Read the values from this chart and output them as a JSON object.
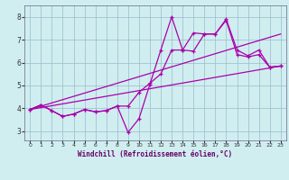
{
  "xlabel": "Windchill (Refroidissement éolien,°C)",
  "background_color": "#d0eef0",
  "line_color": "#aa00aa",
  "grid_color": "#99bbcc",
  "axis_bg": "#d0eef0",
  "xlim_min": -0.5,
  "xlim_max": 23.5,
  "ylim_min": 2.6,
  "ylim_max": 8.5,
  "xticks": [
    0,
    1,
    2,
    3,
    4,
    5,
    6,
    7,
    8,
    9,
    10,
    11,
    12,
    13,
    14,
    15,
    16,
    17,
    18,
    19,
    20,
    21,
    22,
    23
  ],
  "yticks": [
    3,
    4,
    5,
    6,
    7,
    8
  ],
  "line1_x": [
    0,
    1,
    2,
    3,
    4,
    5,
    6,
    7,
    8,
    9,
    10,
    11,
    12,
    13,
    14,
    15,
    16,
    17,
    18,
    19,
    20,
    21,
    22,
    23
  ],
  "line1_y": [
    3.95,
    4.15,
    3.9,
    3.65,
    3.75,
    3.95,
    3.85,
    3.9,
    4.1,
    4.1,
    4.7,
    5.1,
    5.5,
    6.55,
    6.55,
    6.5,
    7.25,
    7.25,
    7.9,
    6.55,
    6.3,
    6.55,
    5.8,
    5.85
  ],
  "line2_x": [
    0,
    1,
    2,
    3,
    4,
    5,
    6,
    7,
    8,
    9,
    10,
    11,
    12,
    13,
    14,
    15,
    16,
    17,
    18,
    19,
    20,
    21,
    22,
    23
  ],
  "line2_y": [
    3.95,
    4.15,
    3.9,
    3.65,
    3.75,
    3.95,
    3.85,
    3.9,
    4.1,
    2.95,
    3.55,
    5.05,
    6.55,
    8.0,
    6.55,
    7.3,
    7.25,
    7.25,
    7.85,
    6.35,
    6.25,
    6.35,
    5.8,
    5.85
  ],
  "line3_x": [
    0,
    23
  ],
  "line3_y": [
    3.95,
    5.85
  ],
  "line4_x": [
    0,
    23
  ],
  "line4_y": [
    3.95,
    7.25
  ],
  "label_color": "#660066",
  "tick_color": "#333333",
  "spine_color": "#666688"
}
